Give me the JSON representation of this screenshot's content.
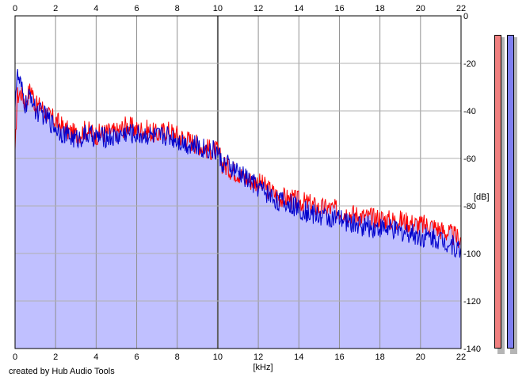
{
  "chart_data": {
    "type": "area",
    "title": "",
    "xlabel": "[kHz]",
    "ylabel": "[dB]",
    "xlim": [
      0,
      22
    ],
    "ylim": [
      -140,
      0
    ],
    "x_ticks": [
      0,
      2,
      4,
      6,
      8,
      10,
      12,
      14,
      16,
      18,
      20,
      22
    ],
    "y_ticks": [
      0,
      -20,
      -40,
      -60,
      -80,
      -100,
      -120,
      -140
    ],
    "grid": true,
    "fill_color": "#c0c0ff",
    "series": [
      {
        "color": "#ff0000",
        "x": [
          0,
          0.1,
          0.3,
          0.5,
          0.8,
          1.0,
          1.3,
          1.6,
          2.0,
          2.5,
          3.0,
          3.5,
          4.0,
          4.5,
          5.0,
          5.5,
          6.0,
          6.5,
          7.0,
          7.5,
          8.0,
          8.5,
          9.0,
          9.5,
          10.0,
          10.2,
          10.5,
          11.0,
          11.5,
          12.0,
          12.5,
          13.0,
          13.5,
          14.0,
          14.5,
          15.0,
          15.5,
          16.0,
          16.5,
          17.0,
          17.5,
          18.0,
          18.5,
          19.0,
          19.5,
          20.0,
          20.5,
          21.0,
          21.5,
          22.0
        ],
        "values": [
          -60,
          -34,
          -32,
          -36,
          -30,
          -38,
          -38,
          -42,
          -44,
          -48,
          -50,
          -48,
          -50,
          -49,
          -49,
          -46,
          -48,
          -48,
          -50,
          -48,
          -50,
          -52,
          -54,
          -56,
          -57,
          -62,
          -64,
          -66,
          -69,
          -70,
          -73,
          -76,
          -77,
          -78,
          -79,
          -81,
          -81,
          -82,
          -83,
          -84,
          -85,
          -85,
          -86,
          -86,
          -87,
          -88,
          -88,
          -90,
          -92,
          -94
        ]
      },
      {
        "color": "#0000cc",
        "x": [
          0,
          0.1,
          0.3,
          0.5,
          0.8,
          1.0,
          1.3,
          1.6,
          2.0,
          2.5,
          3.0,
          3.5,
          4.0,
          4.5,
          5.0,
          5.5,
          6.0,
          6.5,
          7.0,
          7.5,
          8.0,
          8.5,
          9.0,
          9.5,
          10.0,
          10.2,
          10.5,
          11.0,
          11.5,
          12.0,
          12.5,
          13.0,
          13.5,
          14.0,
          14.5,
          15.0,
          15.5,
          16.0,
          16.5,
          17.0,
          17.5,
          18.0,
          18.5,
          19.0,
          19.5,
          20.0,
          20.5,
          21.0,
          21.5,
          22.0
        ],
        "values": [
          -35,
          -25,
          -30,
          -38,
          -33,
          -40,
          -41,
          -43,
          -47,
          -50,
          -52,
          -50,
          -51,
          -51,
          -51,
          -49,
          -50,
          -50,
          -51,
          -50,
          -52,
          -54,
          -55,
          -56,
          -57,
          -62,
          -63,
          -66,
          -69,
          -72,
          -75,
          -78,
          -79,
          -81,
          -83,
          -84,
          -85,
          -86,
          -87,
          -88,
          -89,
          -89,
          -90,
          -91,
          -91,
          -93,
          -93,
          -94,
          -96,
          -99
        ]
      }
    ]
  },
  "credit": "created by Hub Audio Tools",
  "level_meters": {
    "left_color": "#f08080",
    "right_color": "#8080f0"
  }
}
